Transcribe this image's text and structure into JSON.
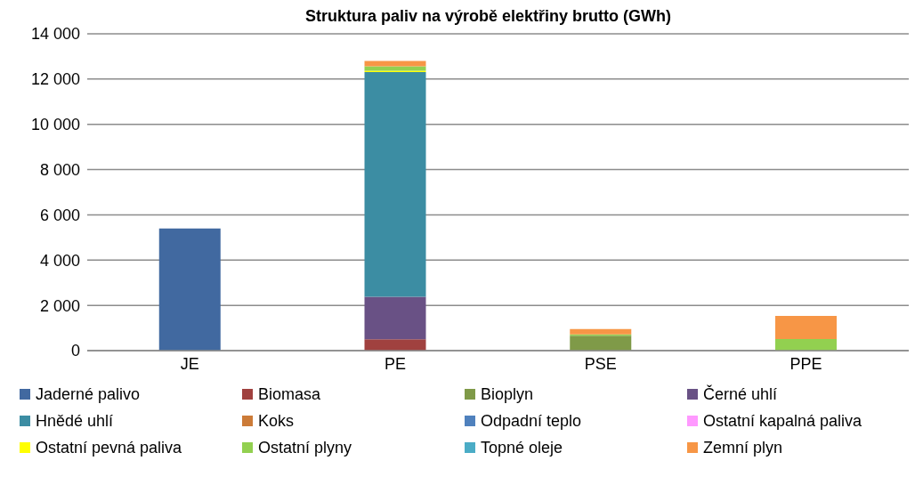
{
  "chart_data": {
    "type": "bar",
    "title": "Struktura paliv na výrobě elektřiny brutto (GWh)",
    "categories": [
      "JE",
      "PE",
      "PSE",
      "PPE"
    ],
    "stacked": true,
    "ylim": [
      0,
      14000
    ],
    "yticks": [
      {
        "value": 0,
        "label": "0"
      },
      {
        "value": 2000,
        "label": "2 000"
      },
      {
        "value": 4000,
        "label": "4 000"
      },
      {
        "value": 6000,
        "label": "6 000"
      },
      {
        "value": 8000,
        "label": "8 000"
      },
      {
        "value": 10000,
        "label": "10 000"
      },
      {
        "value": 12000,
        "label": "12 000"
      },
      {
        "value": 14000,
        "label": "14 000"
      }
    ],
    "grid": "y",
    "legend": "bottom",
    "series": [
      {
        "name": "Jaderné palivo",
        "color": "#4169a0",
        "values": [
          5400,
          null,
          null,
          null
        ]
      },
      {
        "name": "Biomasa",
        "color": "#a0413f",
        "values": [
          null,
          500,
          null,
          null
        ]
      },
      {
        "name": "Bioplyn",
        "color": "#7f9a48",
        "values": [
          null,
          null,
          660,
          null
        ]
      },
      {
        "name": "Černé uhlí",
        "color": "#695185",
        "values": [
          null,
          1880,
          null,
          null
        ]
      },
      {
        "name": "Hnědé uhlí",
        "color": "#3c8da3",
        "values": [
          null,
          9930,
          null,
          null
        ]
      },
      {
        "name": "Koks",
        "color": "#cc7b38",
        "values": [
          null,
          null,
          null,
          null
        ]
      },
      {
        "name": "Odpadní teplo",
        "color": "#4f81bd",
        "values": [
          null,
          null,
          null,
          null
        ]
      },
      {
        "name": "Ostatní kapalná paliva",
        "color": "#ff99ff",
        "values": [
          null,
          null,
          null,
          null
        ]
      },
      {
        "name": "Ostatní pevná paliva",
        "color": "#ffff00",
        "values": [
          null,
          60,
          null,
          null
        ]
      },
      {
        "name": "Ostatní plyny",
        "color": "#92d050",
        "values": [
          null,
          190,
          60,
          510
        ]
      },
      {
        "name": "Topné oleje",
        "color": "#4bacc6",
        "values": [
          null,
          null,
          null,
          null
        ]
      },
      {
        "name": "Zemní plyn",
        "color": "#f79646",
        "values": [
          null,
          240,
          230,
          1020
        ]
      }
    ]
  }
}
